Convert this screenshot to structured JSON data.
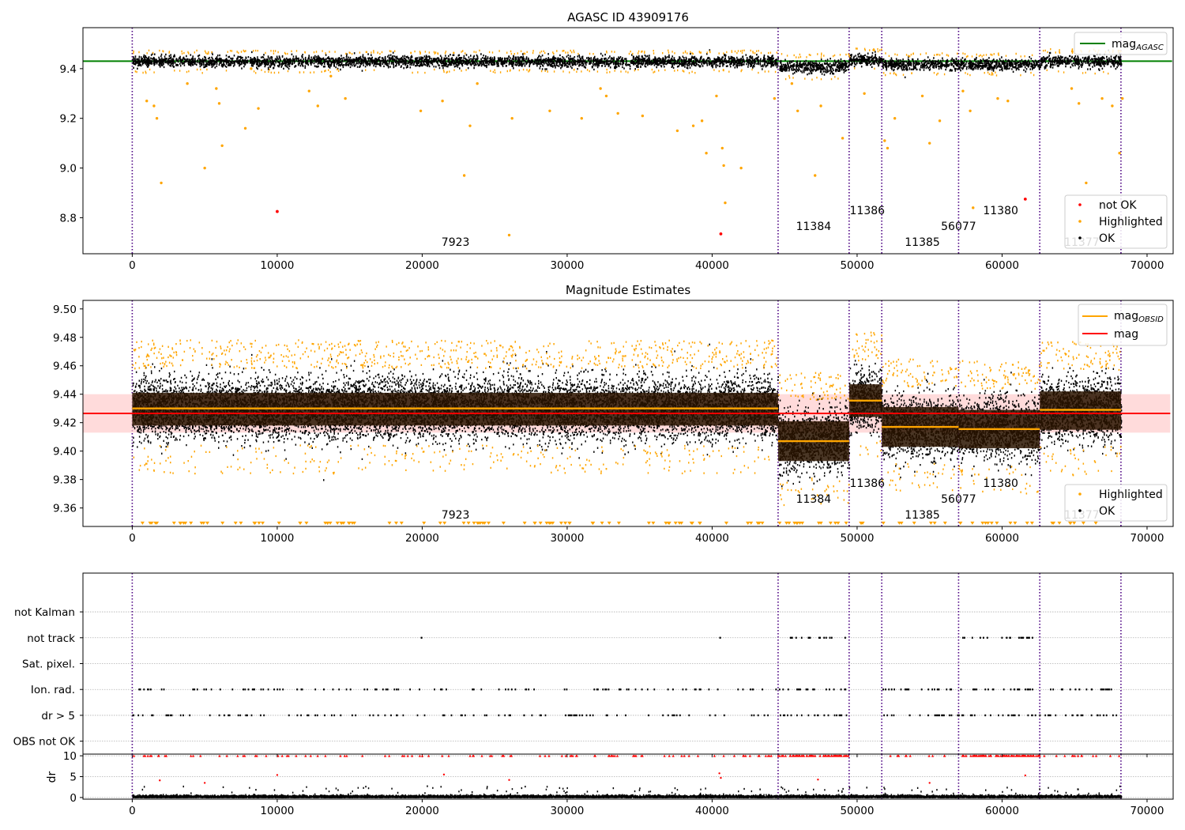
{
  "colors": {
    "ok": "#000000",
    "highlighted": "#ffa500",
    "not_ok": "#ff0000",
    "agasc_line": "#008000",
    "obsid_line": "#ffa500",
    "mag_line": "#ff0000",
    "mag_band": "#ffcccc",
    "obsid_band": "#2a1400",
    "obs_divider": "#4b0082",
    "grid": "#b0b0b0"
  },
  "obs_boundaries": [
    0,
    44550,
    49450,
    51700,
    57000,
    62600,
    68200
  ],
  "obs_labels": [
    {
      "text": "7923",
      "x": 22300,
      "level": 0
    },
    {
      "text": "11384",
      "x": 47000,
      "level": 1
    },
    {
      "text": "11386",
      "x": 50700,
      "level": 2
    },
    {
      "text": "11385",
      "x": 54500,
      "level": 0
    },
    {
      "text": "56077",
      "x": 57000,
      "level": 1
    },
    {
      "text": "11380",
      "x": 59900,
      "level": 2
    },
    {
      "text": "11377",
      "x": 65500,
      "level": 0
    }
  ],
  "chart_data": [
    {
      "type": "scatter",
      "title": "AGASC ID 43909176",
      "xlim": [
        -3400,
        71800
      ],
      "ylim": [
        8.655,
        9.565
      ],
      "x_ticks": [
        0,
        10000,
        20000,
        30000,
        40000,
        50000,
        60000,
        70000
      ],
      "y_ticks": [
        8.8,
        9.0,
        9.2,
        9.4
      ],
      "grid": false,
      "legend_top": {
        "entries": [
          "mag_{AGASC}"
        ],
        "placement": "top-right"
      },
      "legend_bottom": {
        "entries": [
          "not OK",
          "Highlighted",
          "OK"
        ],
        "placement": "bottom-right"
      },
      "agasc_mag": 9.43,
      "segments": [
        {
          "x0": 0,
          "x1": 44550,
          "y_center": 9.428,
          "spread": 0.012
        },
        {
          "x0": 44550,
          "x1": 49450,
          "y_center": 9.408,
          "spread": 0.014
        },
        {
          "x0": 49450,
          "x1": 51700,
          "y_center": 9.436,
          "spread": 0.012
        },
        {
          "x0": 51700,
          "x1": 57000,
          "y_center": 9.417,
          "spread": 0.012
        },
        {
          "x0": 57000,
          "x1": 62600,
          "y_center": 9.416,
          "spread": 0.012
        },
        {
          "x0": 62600,
          "x1": 68200,
          "y_center": 9.429,
          "spread": 0.013
        }
      ],
      "highlighted_outliers": [
        [
          1000,
          9.27
        ],
        [
          1500,
          9.25
        ],
        [
          1700,
          9.2
        ],
        [
          2000,
          8.94
        ],
        [
          3800,
          9.34
        ],
        [
          5000,
          9.0
        ],
        [
          5800,
          9.32
        ],
        [
          6000,
          9.26
        ],
        [
          6200,
          9.09
        ],
        [
          7800,
          9.16
        ],
        [
          8200,
          9.4
        ],
        [
          8700,
          9.24
        ],
        [
          12200,
          9.31
        ],
        [
          12800,
          9.25
        ],
        [
          13700,
          9.37
        ],
        [
          14700,
          9.28
        ],
        [
          19900,
          9.23
        ],
        [
          21400,
          9.27
        ],
        [
          22900,
          8.97
        ],
        [
          23300,
          9.17
        ],
        [
          23800,
          9.34
        ],
        [
          26000,
          8.73
        ],
        [
          26200,
          9.2
        ],
        [
          28800,
          9.23
        ],
        [
          31000,
          9.2
        ],
        [
          32300,
          9.32
        ],
        [
          32700,
          9.29
        ],
        [
          33500,
          9.22
        ],
        [
          35200,
          9.21
        ],
        [
          37600,
          9.15
        ],
        [
          38700,
          9.17
        ],
        [
          39300,
          9.19
        ],
        [
          39600,
          9.06
        ],
        [
          40300,
          9.29
        ],
        [
          40700,
          9.08
        ],
        [
          40900,
          8.86
        ],
        [
          40800,
          9.01
        ],
        [
          42000,
          9.0
        ],
        [
          44300,
          9.28
        ],
        [
          45500,
          9.34
        ],
        [
          45900,
          9.23
        ],
        [
          47100,
          8.97
        ],
        [
          47500,
          9.25
        ],
        [
          49000,
          9.12
        ],
        [
          50500,
          9.3
        ],
        [
          51900,
          9.11
        ],
        [
          52100,
          9.08
        ],
        [
          52600,
          9.2
        ],
        [
          54500,
          9.29
        ],
        [
          55000,
          9.1
        ],
        [
          55700,
          9.19
        ],
        [
          57300,
          9.31
        ],
        [
          57800,
          9.23
        ],
        [
          58000,
          8.84
        ],
        [
          59700,
          9.28
        ],
        [
          60400,
          9.27
        ],
        [
          64800,
          9.32
        ],
        [
          65300,
          9.26
        ],
        [
          65800,
          8.94
        ],
        [
          66900,
          9.28
        ],
        [
          67600,
          9.25
        ],
        [
          68100,
          9.06
        ],
        [
          68300,
          9.28
        ]
      ],
      "not_ok_points": [
        [
          10000,
          8.825
        ],
        [
          40600,
          8.735
        ],
        [
          61600,
          8.875
        ]
      ]
    },
    {
      "type": "scatter",
      "title": "Magnitude Estimates",
      "xlim": [
        -3400,
        71800
      ],
      "ylim": [
        9.347,
        9.506
      ],
      "x_ticks": [
        0,
        10000,
        20000,
        30000,
        40000,
        50000,
        60000,
        70000
      ],
      "y_ticks": [
        9.36,
        9.38,
        9.4,
        9.42,
        9.44,
        9.46,
        9.48,
        9.5
      ],
      "grid": false,
      "legend_top": {
        "entries": [
          "mag_{OBSID}",
          "mag"
        ],
        "placement": "top-right"
      },
      "legend_bottom": {
        "entries": [
          "Highlighted",
          "OK"
        ],
        "placement": "bottom-right"
      },
      "mag": 9.4265,
      "mag_band": [
        9.413,
        9.44
      ],
      "obsid_mag": [
        9.43,
        9.407,
        9.4355,
        9.417,
        9.4155,
        9.429
      ],
      "obsid_band": [
        [
          9.418,
          9.441
        ],
        [
          9.393,
          9.421
        ],
        [
          9.424,
          9.447
        ],
        [
          9.403,
          9.431
        ],
        [
          9.402,
          9.429
        ],
        [
          9.415,
          9.442
        ]
      ],
      "clipped_marker_y": 9.349
    },
    {
      "type": "scatter",
      "title": "",
      "xlim": [
        -3400,
        71800
      ],
      "ylim": [
        0.5,
        7.5
      ],
      "x_ticks": [
        0,
        10000,
        20000,
        30000,
        40000,
        50000,
        60000,
        70000
      ],
      "category_labels": [
        "OBS not OK",
        "dr > 5",
        "Ion. rad.",
        "Sat. pixel.",
        "not track",
        "not Kalman"
      ],
      "grid": true,
      "flag_points": {
        "not_track": [
          [
            19900,
            19900
          ],
          [
            40500,
            40500
          ],
          [
            45300,
            49300
          ],
          [
            57100,
            62500
          ]
        ],
        "ion_rad": [
          [
            0,
            44550
          ],
          [
            44550,
            49450
          ],
          [
            51700,
            57000
          ],
          [
            57000,
            62600
          ],
          [
            62600,
            68200
          ]
        ],
        "dr_gt_5": [
          [
            0,
            44550
          ],
          [
            44550,
            49450
          ],
          [
            51700,
            57000
          ],
          [
            57000,
            62600
          ],
          [
            62600,
            68200
          ]
        ]
      }
    },
    {
      "type": "scatter",
      "title": "",
      "xlim": [
        -3400,
        71800
      ],
      "ylim": [
        -0.4,
        10.4
      ],
      "x_ticks": [
        0,
        10000,
        20000,
        30000,
        40000,
        50000,
        60000,
        70000
      ],
      "x_tick_labels": [
        "0",
        "10000",
        "20000",
        "30000",
        "40000",
        "50000",
        "60000",
        "70000"
      ],
      "y_ticks": [
        0,
        5,
        10
      ],
      "ylabel": "dr",
      "grid": true,
      "clip_value": 10,
      "dr_outliers": [
        [
          1900,
          4.1
        ],
        [
          5000,
          3.5
        ],
        [
          10000,
          5.4
        ],
        [
          21500,
          5.5
        ],
        [
          26000,
          4.2
        ],
        [
          40500,
          5.8
        ],
        [
          40600,
          4.7
        ],
        [
          47300,
          4.3
        ],
        [
          55000,
          3.5
        ],
        [
          61600,
          5.3
        ]
      ]
    }
  ]
}
